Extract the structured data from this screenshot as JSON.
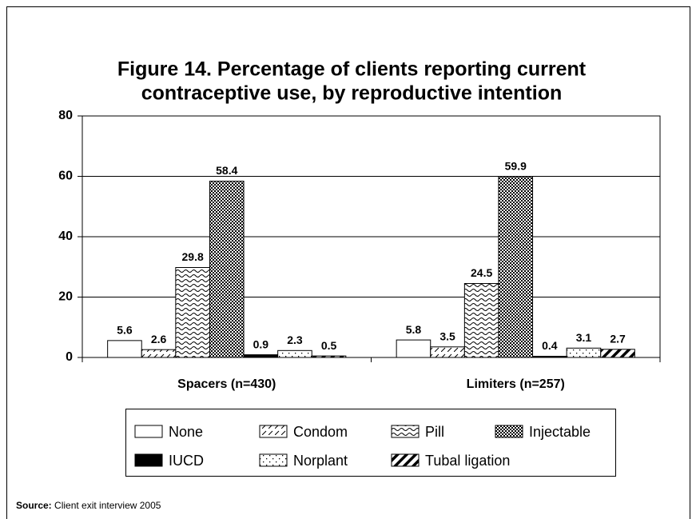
{
  "chart_data": {
    "type": "bar",
    "title": [
      "Figure 14. Percentage of clients reporting current",
      "contraceptive use, by reproductive intention"
    ],
    "categories": [
      "Spacers (n=430)",
      "Limiters (n=257)"
    ],
    "series": [
      {
        "name": "None",
        "color": "#ffffff",
        "pattern": "solid",
        "values": [
          5.6,
          5.8
        ]
      },
      {
        "name": "Condom",
        "color": "#000000",
        "pattern": "dashed-diagonal",
        "values": [
          2.6,
          3.5
        ]
      },
      {
        "name": "Pill",
        "color": "#000000",
        "pattern": "wave",
        "values": [
          29.8,
          24.5
        ]
      },
      {
        "name": "Injectable",
        "color": "#000000",
        "pattern": "checker",
        "values": [
          58.4,
          59.9
        ]
      },
      {
        "name": "IUCD",
        "color": "#000000",
        "pattern": "solid",
        "values": [
          0.9,
          0.4
        ]
      },
      {
        "name": "Norplant",
        "color": "#000000",
        "pattern": "dots",
        "values": [
          2.3,
          3.1
        ]
      },
      {
        "name": "Tubal ligation",
        "color": "#000000",
        "pattern": "wide-diagonal",
        "values": [
          0.5,
          2.7
        ]
      }
    ],
    "ylim": [
      0,
      80
    ],
    "yticks": [
      0,
      20,
      40,
      60,
      80
    ],
    "grid": true,
    "source_label": "Source:",
    "source_text": "Client exit interview 2005"
  }
}
